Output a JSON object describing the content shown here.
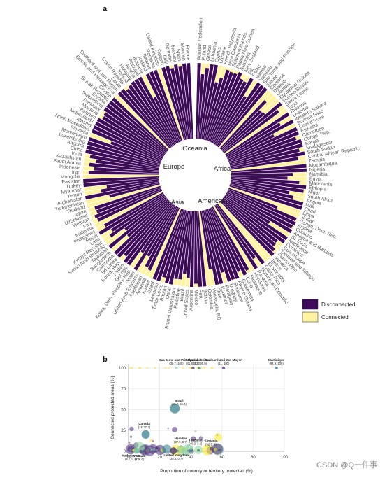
{
  "panel_a_label": "a",
  "panel_b_label": "b",
  "watermark": "CSDN @Q一件事",
  "colors": {
    "disconnected": "#3e0a5a",
    "connected": "#fff3a0",
    "europe": "#4a2a7a",
    "americas": "#2c7a8c",
    "asia": "#5a3a8c",
    "africa": "#8ad1a0",
    "oceania": "#fde725"
  },
  "chart_data": [
    {
      "type": "radial-bar",
      "regions": [
        "Oceania",
        "Africa",
        "Americas",
        "Asia",
        "Europe"
      ],
      "legend": [
        {
          "label": "Disconnected",
          "color": "#3e0a5a"
        },
        {
          "label": "Connected",
          "color": "#fff3a0"
        }
      ],
      "countries_visible": [
        "Russian Federation",
        "Poland",
        "Greece",
        "Lithuania",
        "Cyprus",
        "Ukraine",
        "French Polynesia",
        "New Caledonia",
        "Solomon Islands",
        "Papua New Guinea",
        "Australia",
        "New Zealand",
        "Fiji",
        "Palau",
        "Samoa",
        "Vanuatu",
        "Sao Tome and Principe",
        "Eritrea",
        "Comoros",
        "Djibouti",
        "Gambia",
        "Equatorial Guinea",
        "Guinea-Bissau",
        "Sierra Leone",
        "Togo",
        "Rwanda",
        "Lesotho",
        "Western Sahara",
        "Burkina Faso",
        "Cote d'Ivoire",
        "Eswatini",
        "Cameroon",
        "Congo, Rep.",
        "Kenya",
        "Madagascar",
        "South Sudan",
        "Central African Republic",
        "Zambia",
        "Mozambique",
        "Nigeria",
        "Namibia",
        "Egypt",
        "Mauritania",
        "Ethiopia",
        "Niger",
        "South Africa",
        "Angola",
        "Mali",
        "Chad",
        "Libya",
        "Sudan",
        "Congo, Dem. Rep.",
        "Algeria",
        "Curacao",
        "Antigua and Barbuda",
        "St. Lucia",
        "Martinique",
        "Dominica",
        "Guadeloupe",
        "Trinidad and Tobago",
        "Puerto Rico",
        "Jamaica",
        "Belize",
        "El Salvador",
        "Costa Rica",
        "Dominican Republic",
        "Panama",
        "Honduras",
        "Nicaragua",
        "Cuba",
        "Guatemala",
        "French Guiana",
        "Suriname",
        "Uruguay",
        "Paraguay",
        "Ecuador",
        "Chile",
        "Venezuela, RB",
        "Colombia",
        "Bolivia",
        "Peru",
        "Mexico",
        "Argentina",
        "United States",
        "Brazil",
        "Palestine",
        "Brunei Darussalam",
        "Qatar",
        "Bhutan",
        "Timor-Leste",
        "Lebanon",
        "Israel",
        "Kuwait",
        "Armenia",
        "Azerbaijan",
        "United Arab Emirates",
        "Oman",
        "Korea, Dem. People's Rep.",
        "Georgia",
        "Jordan",
        "Korea, Rep.",
        "Sri Lanka",
        "Cambodia",
        "Bangladesh",
        "Tajikistan",
        "Syrian Arab Republic",
        "Kyrgyz Republic",
        "Laos",
        "Nepal",
        "Philippines",
        "Malaysia",
        "Iraq",
        "Vietnam",
        "Uzbekistan",
        "Japan",
        "Thailand",
        "Turkmenistan",
        "Afghanistan",
        "Yemen",
        "Myanmar",
        "Turkey",
        "Pakistan",
        "Mongolia",
        "Iran",
        "Indonesia",
        "Saudi Arabia",
        "Kazakhstan",
        "India",
        "China",
        "Andorra",
        "Luxembourg",
        "Montenegro",
        "Slovenia",
        "North Macedonia",
        "Albania",
        "Netherlands",
        "Belgium",
        "Moldova",
        "Denmark",
        "Switzerland",
        "Estonia",
        "Slovak Republic",
        "Croatia",
        "Bosnia and Herzegovina",
        "Svalbard and Jan Mayen",
        "Latvia",
        "Czech Republic",
        "Ireland",
        "Hungary",
        "Austria",
        "Portugal",
        "Bulgaria",
        "Iceland",
        "Belarus",
        "Romania",
        "United Kingdom",
        "Finland",
        "Italy",
        "Germany",
        "Norway",
        "Spain",
        "Sweden",
        "France"
      ]
    },
    {
      "type": "scatter",
      "xlabel": "Proportion of country or territory protected (%)",
      "ylabel": "Connected protected areas (%)",
      "xlim": [
        0,
        100
      ],
      "ylim": [
        0,
        105
      ],
      "xticks": [
        0,
        20,
        40,
        60,
        80,
        100
      ],
      "yticks": [
        0,
        25,
        50,
        75,
        100
      ],
      "annotated_points": [
        {
          "label": "Sao tome and Principe",
          "value": "(30.7, 100)",
          "x": 30.7,
          "y": 100,
          "region": "africa"
        },
        {
          "label": "French Guiana",
          "value": "(45.4, 99.9)",
          "x": 45.4,
          "y": 99.9,
          "region": "americas"
        },
        {
          "label": "Greenland",
          "value": "(41.4, 100)",
          "x": 41.4,
          "y": 100,
          "region": "europe"
        },
        {
          "label": "Svalbard and Jan Mayen",
          "value": "(61, 100)",
          "x": 61,
          "y": 100,
          "region": "europe"
        },
        {
          "label": "Martinique",
          "value": "(94.9, 100)",
          "x": 94.9,
          "y": 100,
          "region": "americas"
        },
        {
          "label": "Brazil",
          "value": "(29.7, 51.4)",
          "x": 29.7,
          "y": 51.4,
          "region": "americas"
        },
        {
          "label": "Canada",
          "value": "(11, 20.3)",
          "x": 11,
          "y": 20.3,
          "region": "americas"
        },
        {
          "label": "Namibia",
          "value": "(37.9, 5.7)",
          "x": 37.9,
          "y": 5.7,
          "region": "africa"
        },
        {
          "label": "Tanzania",
          "value": "(40.3, 3.6)",
          "x": 40.3,
          "y": 3.6,
          "region": "africa"
        },
        {
          "label": "Slovenia",
          "value": "(52.9, 3)",
          "x": 52.9,
          "y": 3,
          "region": "europe"
        },
        {
          "label": "Madagascar",
          "value": "(4.2, 0.3)",
          "x": 4.2,
          "y": 0.3,
          "region": "africa"
        },
        {
          "label": "Vietnam",
          "value": "(7.9, 0)",
          "x": 7.9,
          "y": 0,
          "region": "asia"
        },
        {
          "label": "United Kingdom",
          "value": "(28.8, 0.7)",
          "x": 28.8,
          "y": 0.7,
          "region": "europe"
        }
      ]
    }
  ]
}
